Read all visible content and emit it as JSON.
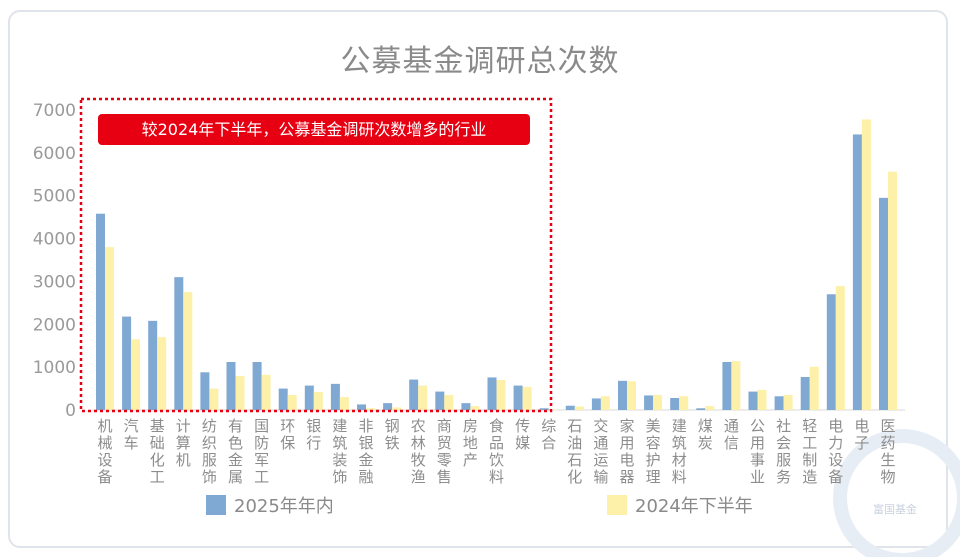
{
  "chart_data": {
    "type": "bar",
    "title": "公募基金调研总次数",
    "ylim": [
      0,
      7000
    ],
    "yticks": [
      0,
      1000,
      2000,
      3000,
      4000,
      5000,
      6000,
      7000
    ],
    "categories": [
      "机械设备",
      "汽车",
      "基础化工",
      "计算机",
      "纺织服饰",
      "有色金属",
      "国防军工",
      "环保",
      "银行",
      "建筑装饰",
      "非银金融",
      "钢铁",
      "农林牧渔",
      "商贸零售",
      "房地产",
      "食品饮料",
      "传媒",
      "综合",
      "石油石化",
      "交通运输",
      "家用电器",
      "美容护理",
      "建筑材料",
      "煤炭",
      "通信",
      "公用事业",
      "社会服务",
      "轻工制造",
      "电力设备",
      "电子",
      "医药生物"
    ],
    "series": [
      {
        "name": "2025年年内",
        "color": "#7fa9d3",
        "values": [
          4580,
          2180,
          2080,
          3100,
          880,
          1120,
          1120,
          500,
          570,
          610,
          130,
          160,
          710,
          430,
          160,
          760,
          570,
          40,
          100,
          270,
          680,
          340,
          280,
          40,
          1120,
          430,
          320,
          770,
          2700,
          6430,
          4950
        ]
      },
      {
        "name": "2024年下半年",
        "color": "#fdf0a8",
        "values": [
          3800,
          1650,
          1700,
          2750,
          500,
          790,
          820,
          350,
          420,
          300,
          40,
          60,
          570,
          350,
          90,
          700,
          540,
          10,
          80,
          320,
          670,
          350,
          320,
          90,
          1140,
          470,
          350,
          1010,
          2890,
          6780,
          5560
        ]
      }
    ],
    "legend_position": "bottom",
    "grid": false,
    "annotation": {
      "text": "较2024年下半年，公募基金调研次数增多的行业",
      "color": "#e60012"
    }
  },
  "watermark": "富国基金"
}
